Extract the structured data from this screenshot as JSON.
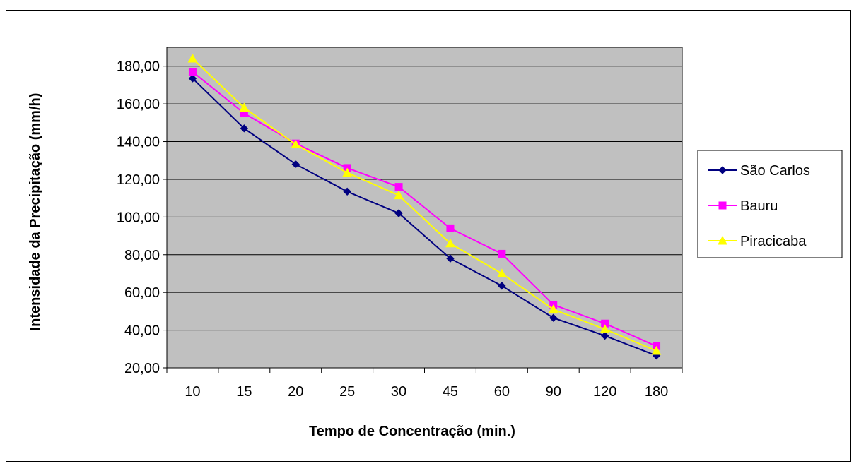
{
  "chart_data": {
    "type": "line",
    "title": "",
    "xlabel": "Tempo de Concentração (min.)",
    "ylabel": "Intensidade da Precipitação (mm/h)",
    "categories": [
      "10",
      "15",
      "20",
      "25",
      "30",
      "45",
      "60",
      "90",
      "120",
      "180"
    ],
    "ylim": [
      20,
      190
    ],
    "yticks": [
      20,
      40,
      60,
      80,
      100,
      120,
      140,
      160,
      180
    ],
    "ytick_labels": [
      "20,00",
      "40,00",
      "60,00",
      "80,00",
      "100,00",
      "120,00",
      "140,00",
      "160,00",
      "180,00"
    ],
    "grid": true,
    "plot_background": "#c0c0c0",
    "legend_position": "right",
    "series": [
      {
        "name": "São Carlos",
        "color": "#000080",
        "marker": "diamond",
        "values": [
          173.5,
          147.0,
          128.0,
          113.5,
          102.0,
          78.0,
          63.5,
          46.5,
          37.0,
          26.5
        ]
      },
      {
        "name": "Bauru",
        "color": "#ff00ff",
        "marker": "square",
        "values": [
          177.0,
          155.0,
          139.0,
          126.0,
          116.0,
          94.0,
          80.5,
          53.5,
          43.5,
          31.5
        ]
      },
      {
        "name": "Piracicaba",
        "color": "#ffff00",
        "marker": "triangle",
        "values": [
          184.0,
          158.0,
          138.5,
          123.5,
          111.5,
          86.0,
          70.0,
          51.0,
          40.5,
          29.0
        ]
      }
    ]
  }
}
